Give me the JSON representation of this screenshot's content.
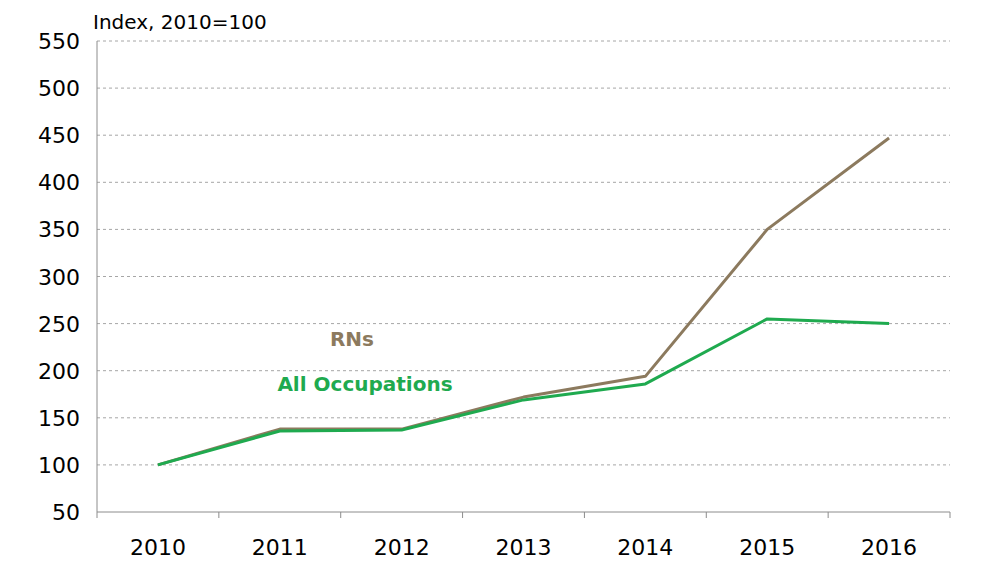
{
  "chart_data": {
    "type": "line",
    "y_label": "Index, 2010=100",
    "categories": [
      "2010",
      "2011",
      "2012",
      "2013",
      "2014",
      "2015",
      "2016"
    ],
    "series": [
      {
        "name": "RNs",
        "color": "#8c7a5e",
        "values": [
          100,
          138,
          138,
          172,
          194,
          350,
          447
        ]
      },
      {
        "name": "All Occupations",
        "color": "#1faa4f",
        "values": [
          100,
          136,
          137,
          169,
          186,
          255,
          250
        ]
      }
    ],
    "ylim": [
      50,
      550
    ],
    "yticks": [
      50,
      100,
      150,
      200,
      250,
      300,
      350,
      400,
      450,
      500,
      550
    ],
    "grid": true
  }
}
